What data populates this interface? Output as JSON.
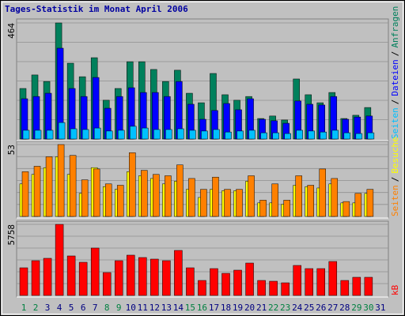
{
  "chart_data": [
    {
      "type": "bar",
      "title": "Tages-Statistik im Monat April 2006",
      "ylim": [
        0,
        464
      ],
      "yticks": [
        464
      ],
      "legend_separator": "/",
      "series": [
        {
          "name": "Seiten",
          "color": "#00c0ff",
          "values": [
            35,
            35,
            35,
            66,
            41,
            38,
            44,
            32,
            35,
            51,
            44,
            38,
            38,
            41,
            35,
            32,
            38,
            28,
            32,
            35,
            25,
            25,
            22,
            35,
            32,
            28,
            35,
            25,
            22,
            25,
            null
          ]
        },
        {
          "name": "Dateien",
          "color": "#0000ff",
          "values": [
            161,
            170,
            183,
            363,
            202,
            170,
            246,
            123,
            170,
            205,
            186,
            186,
            170,
            230,
            139,
            79,
            114,
            142,
            117,
            161,
            79,
            73,
            63,
            152,
            139,
            136,
            170,
            79,
            88,
            92,
            null
          ]
        },
        {
          "name": "Anfragen",
          "color": "#00805c",
          "values": [
            202,
            256,
            230,
            464,
            303,
            249,
            325,
            155,
            202,
            309,
            309,
            278,
            230,
            275,
            183,
            145,
            262,
            177,
            155,
            170,
            82,
            92,
            76,
            240,
            177,
            145,
            186,
            82,
            95,
            126,
            null
          ]
        }
      ]
    },
    {
      "type": "bar",
      "ylim": [
        0,
        53
      ],
      "yticks": [
        53
      ],
      "legend_separator": "/",
      "series": [
        {
          "name": "Seiten",
          "color": "#ff8000",
          "values": [
            33,
            37,
            44,
            53,
            45,
            27,
            35,
            24,
            23,
            47,
            34,
            31,
            30,
            38,
            28,
            20,
            29,
            20,
            20,
            30,
            12,
            24,
            12,
            30,
            23,
            35,
            28,
            11,
            17,
            20,
            null
          ]
        },
        {
          "name": "Besuche",
          "color": "#ffff00",
          "values": [
            24,
            31,
            36,
            44,
            31,
            17,
            36,
            22,
            20,
            33,
            30,
            28,
            24,
            26,
            20,
            14,
            20,
            19,
            19,
            26,
            10,
            10,
            9,
            23,
            22,
            21,
            24,
            10,
            10,
            17,
            null
          ]
        }
      ]
    },
    {
      "type": "bar",
      "ylim": [
        0,
        5758
      ],
      "yticks": [
        5758
      ],
      "categories": [
        "1",
        "2",
        "3",
        "4",
        "5",
        "6",
        "7",
        "8",
        "9",
        "10",
        "11",
        "12",
        "13",
        "14",
        "15",
        "16",
        "17",
        "18",
        "19",
        "20",
        "21",
        "22",
        "23",
        "24",
        "25",
        "26",
        "27",
        "28",
        "29",
        "30",
        "31"
      ],
      "category_colors": [
        "#008040",
        "#008040",
        "#000080",
        "#000080",
        "#000080",
        "#000080",
        "#000080",
        "#008040",
        "#008040",
        "#000080",
        "#000080",
        "#000080",
        "#000080",
        "#000080",
        "#008040",
        "#008040",
        "#000080",
        "#000080",
        "#000080",
        "#000080",
        "#000080",
        "#008040",
        "#008040",
        "#000080",
        "#000080",
        "#000080",
        "#000080",
        "#000080",
        "#008040",
        "#008040",
        "#000080"
      ],
      "series": [
        {
          "name": "kB",
          "color": "#ff0000",
          "values": [
            2240,
            2816,
            3008,
            5758,
            3200,
            2688,
            3840,
            1856,
            2816,
            3264,
            3072,
            2944,
            2816,
            3648,
            2240,
            1216,
            2176,
            1792,
            2048,
            2624,
            1216,
            1152,
            1024,
            2432,
            2176,
            2176,
            2752,
            1216,
            1472,
            1472,
            null
          ]
        }
      ]
    }
  ]
}
